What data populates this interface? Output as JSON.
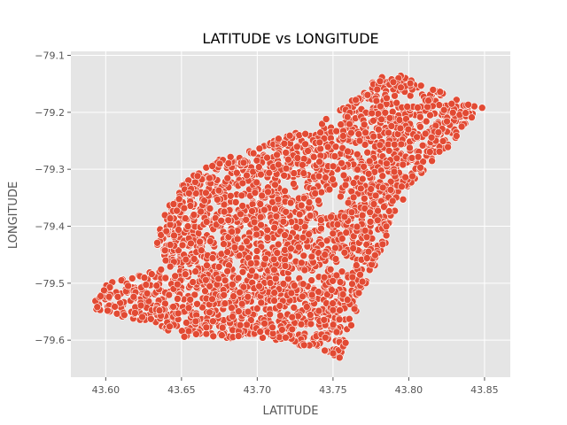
{
  "chart_data": {
    "type": "scatter",
    "title": "LATITUDE vs LONGITUDE",
    "xlabel": "LATITUDE",
    "ylabel": "LONGITUDE",
    "xlim": [
      43.577,
      43.867
    ],
    "ylim": [
      -79.665,
      -79.093
    ],
    "xticks": [
      43.6,
      43.65,
      43.7,
      43.75,
      43.8,
      43.85
    ],
    "xtick_labels": [
      "43.60",
      "43.65",
      "43.70",
      "43.75",
      "43.80",
      "43.85"
    ],
    "yticks": [
      -79.1,
      -79.2,
      -79.3,
      -79.4,
      -79.5,
      -79.6
    ],
    "ytick_labels": [
      "−79.1",
      "−79.2",
      "−79.3",
      "−79.4",
      "−79.5",
      "−79.6"
    ],
    "grid": true,
    "point_color": "#E24A33",
    "point_edge_color": "#ffffff",
    "background_color": "#E5E5E5",
    "region_boundary": [
      [
        43.59,
        -79.545
      ],
      [
        43.6,
        -79.5
      ],
      [
        43.62,
        -79.488
      ],
      [
        43.64,
        -79.47
      ],
      [
        43.632,
        -79.42
      ],
      [
        43.648,
        -79.33
      ],
      [
        43.672,
        -79.285
      ],
      [
        43.7,
        -79.26
      ],
      [
        43.72,
        -79.24
      ],
      [
        43.75,
        -79.205
      ],
      [
        43.775,
        -79.15
      ],
      [
        43.79,
        -79.125
      ],
      [
        43.81,
        -79.155
      ],
      [
        43.825,
        -79.165
      ],
      [
        43.845,
        -79.19
      ],
      [
        43.856,
        -79.17
      ],
      [
        43.83,
        -79.25
      ],
      [
        43.8,
        -79.33
      ],
      [
        43.785,
        -79.43
      ],
      [
        43.77,
        -79.51
      ],
      [
        43.755,
        -79.635
      ],
      [
        43.74,
        -79.615
      ],
      [
        43.7,
        -79.595
      ],
      [
        43.655,
        -79.6
      ],
      [
        43.63,
        -79.57
      ],
      [
        43.612,
        -79.56
      ],
      [
        43.595,
        -79.555
      ]
    ],
    "gap_regions": [
      [
        [
          43.715,
          -79.2
        ],
        [
          43.745,
          -79.17
        ],
        [
          43.76,
          -79.215
        ],
        [
          43.73,
          -79.24
        ]
      ],
      [
        [
          43.735,
          -79.345
        ],
        [
          43.752,
          -79.335
        ],
        [
          43.76,
          -79.37
        ],
        [
          43.742,
          -79.385
        ]
      ]
    ],
    "point_density_note_omitted": true
  }
}
